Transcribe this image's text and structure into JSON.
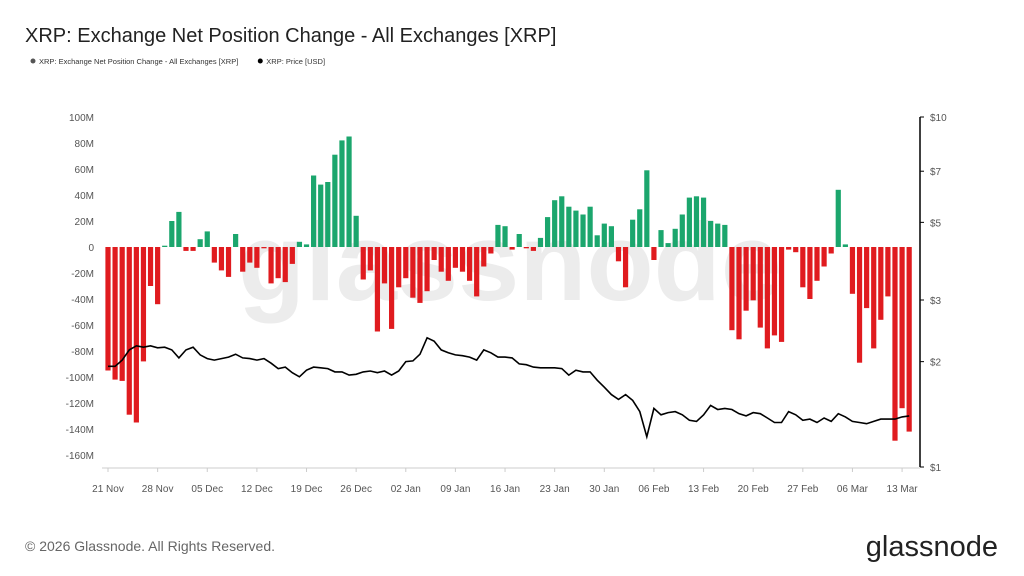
{
  "chart_data": {
    "type": "bar",
    "title": "XRP: Exchange Net Position Change - All Exchanges [XRP]",
    "watermark": "glassnode",
    "footer": "© 2026 Glassnode. All Rights Reserved.",
    "logo": "glassnode",
    "categories": [
      "21 Nov",
      null,
      null,
      null,
      null,
      null,
      null,
      "28 Nov",
      null,
      null,
      null,
      null,
      null,
      null,
      "05 Dec",
      null,
      null,
      null,
      null,
      null,
      null,
      "12 Dec",
      null,
      null,
      null,
      null,
      null,
      null,
      "19 Dec",
      null,
      null,
      null,
      null,
      null,
      null,
      "26 Dec",
      null,
      null,
      null,
      null,
      null,
      null,
      "02 Jan",
      null,
      null,
      null,
      null,
      null,
      null,
      "09 Jan",
      null,
      null,
      null,
      null,
      null,
      null,
      "16 Jan",
      null,
      null,
      null,
      null,
      null,
      null,
      "23 Jan",
      null,
      null,
      null,
      null,
      null,
      null,
      "30 Jan",
      null,
      null,
      null,
      null,
      null,
      null,
      "06 Feb",
      null,
      null,
      null,
      null,
      null,
      null,
      "13 Feb",
      null,
      null,
      null,
      null,
      null,
      null,
      "20 Feb",
      null,
      null,
      null,
      null,
      null,
      null,
      "27 Feb",
      null,
      null,
      null,
      null,
      null,
      null,
      "06 Mar",
      null,
      null,
      null,
      null,
      null,
      null,
      "13 Mar",
      null
    ],
    "series": [
      {
        "name": "XRP: Exchange Net Position Change - All Exchanges [XRP]",
        "type": "bar",
        "color": "#555555",
        "positive_color": "#1ba66d",
        "negative_color": "#e01b1f",
        "values": [
          -95000000,
          -102000000,
          -103000000,
          -129000000,
          -135000000,
          -88000000,
          -30000000,
          -44000000,
          1000000,
          20000000,
          27000000,
          -3000000,
          -3000000,
          6000000,
          12000000,
          -12000000,
          -18000000,
          -23000000,
          10000000,
          -19000000,
          -12000000,
          -16000000,
          -1000000,
          -28000000,
          -24000000,
          -27000000,
          -13000000,
          4000000,
          2000000,
          55000000,
          48000000,
          50000000,
          71000000,
          82000000,
          85000000,
          24000000,
          -25000000,
          -18000000,
          -65000000,
          -28000000,
          -63000000,
          -31000000,
          -24000000,
          -39000000,
          -43000000,
          -34000000,
          -10000000,
          -19000000,
          -26000000,
          -16000000,
          -19000000,
          -26000000,
          -38000000,
          -15000000,
          -5000000,
          17000000,
          16000000,
          -2000000,
          10000000,
          -1000000,
          -3000000,
          7000000,
          23000000,
          36000000,
          39000000,
          31000000,
          28000000,
          25000000,
          31000000,
          9000000,
          18000000,
          16000000,
          -11000000,
          -31000000,
          21000000,
          29000000,
          59000000,
          -10000000,
          13000000,
          3000000,
          14000000,
          25000000,
          38000000,
          39000000,
          38000000,
          20000000,
          18000000,
          17000000,
          -64000000,
          -71000000,
          -49000000,
          -41000000,
          -62000000,
          -78000000,
          -68000000,
          -73000000,
          -2000000,
          -4000000,
          -31000000,
          -40000000,
          -26000000,
          -15000000,
          -5000000,
          44000000,
          2000000,
          -36000000,
          -89000000,
          -47000000,
          -78000000,
          -56000000,
          -38000000,
          -149000000,
          -124000000,
          -142000000
        ]
      },
      {
        "name": "XRP: Price [USD]",
        "type": "line",
        "axis": "y2",
        "color": "#000000",
        "values": [
          1.94,
          1.94,
          2.02,
          2.16,
          2.22,
          2.2,
          2.22,
          2.19,
          2.2,
          2.16,
          2.05,
          2.16,
          2.2,
          2.09,
          2.04,
          2.02,
          2.04,
          2.06,
          2.1,
          2.05,
          2.04,
          2.02,
          2.04,
          1.98,
          1.91,
          1.93,
          1.86,
          1.81,
          1.89,
          1.93,
          1.92,
          1.91,
          1.87,
          1.87,
          1.83,
          1.84,
          1.87,
          1.88,
          1.86,
          1.88,
          1.83,
          1.88,
          2.0,
          2.01,
          2.1,
          2.34,
          2.29,
          2.16,
          2.12,
          2.09,
          2.08,
          2.06,
          2.02,
          2.16,
          2.12,
          2.06,
          2.06,
          2.05,
          1.97,
          1.96,
          1.93,
          1.92,
          1.92,
          1.92,
          1.91,
          1.83,
          1.89,
          1.87,
          1.87,
          1.77,
          1.69,
          1.61,
          1.56,
          1.61,
          1.55,
          1.44,
          1.22,
          1.47,
          1.41,
          1.43,
          1.44,
          1.41,
          1.36,
          1.35,
          1.41,
          1.5,
          1.46,
          1.47,
          1.46,
          1.42,
          1.4,
          1.43,
          1.42,
          1.38,
          1.34,
          1.34,
          1.44,
          1.41,
          1.36,
          1.37,
          1.34,
          1.38,
          1.35,
          1.42,
          1.39,
          1.35,
          1.34,
          1.33,
          1.35,
          1.37,
          1.37,
          1.37,
          1.39,
          1.4
        ]
      }
    ],
    "ylim": [
      -160000000,
      100000000
    ],
    "yticks": [
      {
        "value": -160000000,
        "label": "-160M"
      },
      {
        "value": -140000000,
        "label": "-140M"
      },
      {
        "value": -120000000,
        "label": "-120M"
      },
      {
        "value": -100000000,
        "label": "-100M"
      },
      {
        "value": -80000000,
        "label": "-80M"
      },
      {
        "value": -60000000,
        "label": "-60M"
      },
      {
        "value": -40000000,
        "label": "-40M"
      },
      {
        "value": -20000000,
        "label": "-20M"
      },
      0,
      {
        "value": 20000000,
        "label": "20M"
      },
      {
        "value": 40000000,
        "label": "40M"
      },
      {
        "value": 60000000,
        "label": "60M"
      },
      {
        "value": 80000000,
        "label": "80M"
      },
      {
        "value": 100000000,
        "label": "100M"
      }
    ],
    "y2lim": [
      1,
      10
    ],
    "y2_log": true,
    "y2ticks": [
      {
        "value": 1,
        "label": "$1"
      },
      {
        "value": 2,
        "label": "$2"
      },
      {
        "value": 3,
        "label": "$3"
      },
      {
        "value": 5,
        "label": "$5"
      },
      {
        "value": 7,
        "label": "$7"
      },
      {
        "value": 10,
        "label": "$10"
      }
    ],
    "grid": false,
    "legend": "top-left"
  }
}
